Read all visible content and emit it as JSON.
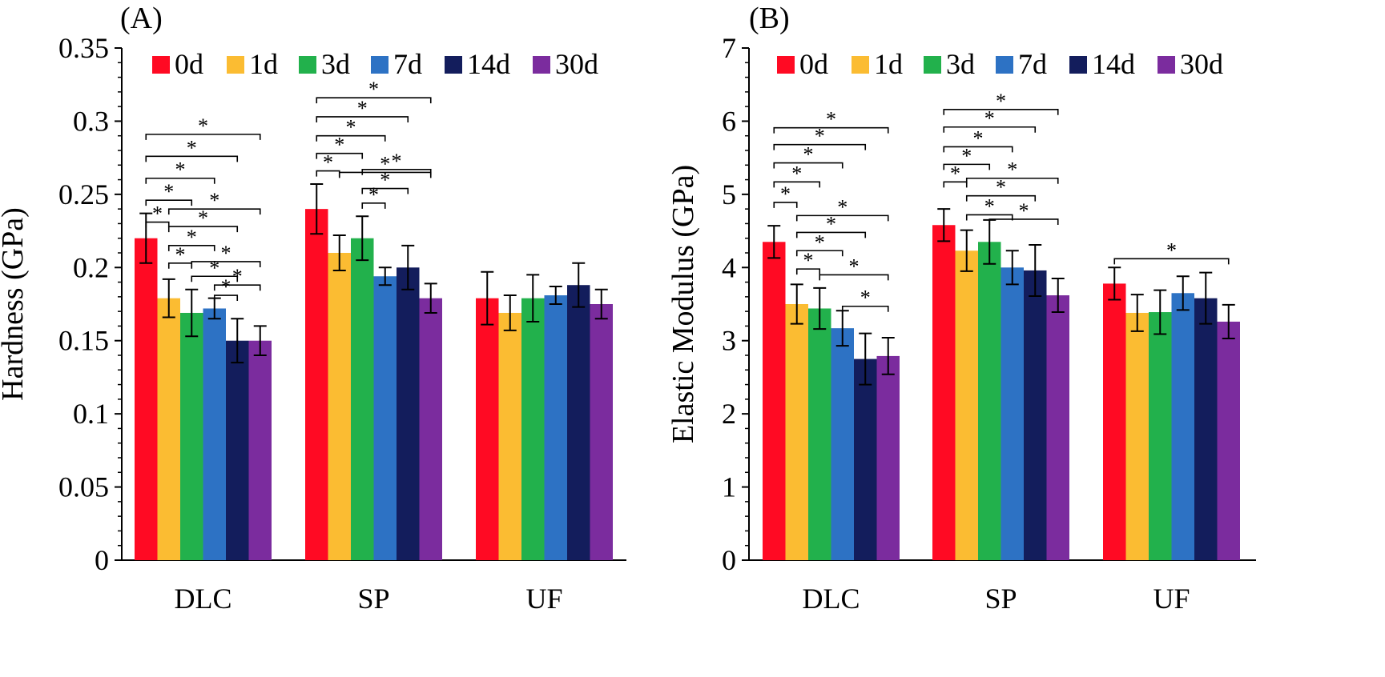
{
  "colors": {
    "0d": "#ff0a23",
    "1d": "#fbbc32",
    "3d": "#22b14c",
    "7d": "#2d72c4",
    "14d": "#131d5c",
    "30d": "#7b2c9e"
  },
  "chart_data": [
    {
      "type": "bar",
      "panel_label": "(A)",
      "ylabel": "Hardness (GPa)",
      "ylim": [
        0,
        0.35
      ],
      "yticks": [
        "0",
        "0.05",
        "0.1",
        "0.15",
        "0.2",
        "0.25",
        "0.3",
        "0.35"
      ],
      "categories": [
        "DLC",
        "SP",
        "UF"
      ],
      "legend": {
        "placement": "top",
        "entries": [
          "0d",
          "1d",
          "3d",
          "7d",
          "14d",
          "30d"
        ]
      },
      "series": [
        {
          "name": "0d",
          "values": [
            0.22,
            0.24,
            0.179
          ],
          "errors": [
            0.017,
            0.017,
            0.018
          ]
        },
        {
          "name": "1d",
          "values": [
            0.179,
            0.21,
            0.169
          ],
          "errors": [
            0.013,
            0.012,
            0.012
          ]
        },
        {
          "name": "3d",
          "values": [
            0.169,
            0.22,
            0.179
          ],
          "errors": [
            0.016,
            0.015,
            0.016
          ]
        },
        {
          "name": "7d",
          "values": [
            0.172,
            0.194,
            0.181
          ],
          "errors": [
            0.007,
            0.006,
            0.006
          ]
        },
        {
          "name": "14d",
          "values": [
            0.15,
            0.2,
            0.188
          ],
          "errors": [
            0.015,
            0.015,
            0.015
          ]
        },
        {
          "name": "30d",
          "values": [
            0.15,
            0.179,
            0.175
          ],
          "errors": [
            0.01,
            0.01,
            0.01
          ]
        }
      ],
      "significance": [
        {
          "cat": 0,
          "from": "0d",
          "to": "1d",
          "level": 0.231,
          "label": "*"
        },
        {
          "cat": 0,
          "from": "0d",
          "to": "3d",
          "level": 0.246,
          "label": "*"
        },
        {
          "cat": 0,
          "from": "0d",
          "to": "7d",
          "level": 0.261,
          "label": "*"
        },
        {
          "cat": 0,
          "from": "0d",
          "to": "14d",
          "level": 0.276,
          "label": "*"
        },
        {
          "cat": 0,
          "from": "0d",
          "to": "30d",
          "level": 0.291,
          "label": "*"
        },
        {
          "cat": 0,
          "from": "1d",
          "to": "3d",
          "level": 0.203,
          "label": "*"
        },
        {
          "cat": 0,
          "from": "1d",
          "to": "7d",
          "level": 0.215,
          "label": "*"
        },
        {
          "cat": 0,
          "from": "1d",
          "to": "14d",
          "level": 0.228,
          "label": "*"
        },
        {
          "cat": 0,
          "from": "1d",
          "to": "30d",
          "level": 0.24,
          "label": "*"
        },
        {
          "cat": 0,
          "from": "3d",
          "to": "14d",
          "level": 0.194,
          "label": "*"
        },
        {
          "cat": 0,
          "from": "3d",
          "to": "30d",
          "level": 0.204,
          "label": "*"
        },
        {
          "cat": 0,
          "from": "7d",
          "to": "30d",
          "level": 0.188,
          "label": "*"
        },
        {
          "cat": 0,
          "from": "7d",
          "to": "14d",
          "level": 0.181,
          "label": "*"
        },
        {
          "cat": 1,
          "from": "0d",
          "to": "1d",
          "level": 0.266,
          "label": "*"
        },
        {
          "cat": 1,
          "from": "0d",
          "to": "3d",
          "level": 0.278,
          "label": "*"
        },
        {
          "cat": 1,
          "from": "0d",
          "to": "7d",
          "level": 0.29,
          "label": "*"
        },
        {
          "cat": 1,
          "from": "0d",
          "to": "14d",
          "level": 0.303,
          "label": "*"
        },
        {
          "cat": 1,
          "from": "0d",
          "to": "30d",
          "level": 0.316,
          "label": "*"
        },
        {
          "cat": 1,
          "from": "1d",
          "to": "30d",
          "level": 0.265,
          "label": "*"
        },
        {
          "cat": 1,
          "from": "3d",
          "to": "7d",
          "level": 0.244,
          "label": "*"
        },
        {
          "cat": 1,
          "from": "3d",
          "to": "14d",
          "level": 0.254,
          "label": "*"
        },
        {
          "cat": 1,
          "from": "3d",
          "to": "30d",
          "level": 0.267,
          "label": "*"
        }
      ]
    },
    {
      "type": "bar",
      "panel_label": "(B)",
      "ylabel": "Elastic Modulus (GPa)",
      "ylim": [
        0,
        7
      ],
      "yticks": [
        "0",
        "1",
        "2",
        "3",
        "4",
        "5",
        "6",
        "7"
      ],
      "categories": [
        "DLC",
        "SP",
        "UF"
      ],
      "legend": {
        "placement": "top",
        "entries": [
          "0d",
          "1d",
          "3d",
          "7d",
          "14d",
          "30d"
        ]
      },
      "series": [
        {
          "name": "0d",
          "values": [
            4.35,
            4.58,
            3.78
          ],
          "errors": [
            0.22,
            0.22,
            0.22
          ]
        },
        {
          "name": "1d",
          "values": [
            3.5,
            4.23,
            3.38
          ],
          "errors": [
            0.27,
            0.28,
            0.25
          ]
        },
        {
          "name": "3d",
          "values": [
            3.44,
            4.35,
            3.39
          ],
          "errors": [
            0.28,
            0.3,
            0.3
          ]
        },
        {
          "name": "7d",
          "values": [
            3.17,
            4.0,
            3.65
          ],
          "errors": [
            0.24,
            0.23,
            0.23
          ]
        },
        {
          "name": "14d",
          "values": [
            2.75,
            3.96,
            3.58
          ],
          "errors": [
            0.35,
            0.35,
            0.35
          ]
        },
        {
          "name": "30d",
          "values": [
            2.79,
            3.62,
            3.26
          ],
          "errors": [
            0.25,
            0.23,
            0.23
          ]
        }
      ],
      "significance": [
        {
          "cat": 0,
          "from": "0d",
          "to": "1d",
          "level": 4.89,
          "label": "*"
        },
        {
          "cat": 0,
          "from": "0d",
          "to": "3d",
          "level": 5.17,
          "label": "*"
        },
        {
          "cat": 0,
          "from": "0d",
          "to": "7d",
          "level": 5.43,
          "label": "*"
        },
        {
          "cat": 0,
          "from": "0d",
          "to": "14d",
          "level": 5.68,
          "label": "*"
        },
        {
          "cat": 0,
          "from": "0d",
          "to": "30d",
          "level": 5.91,
          "label": "*"
        },
        {
          "cat": 0,
          "from": "1d",
          "to": "3d",
          "level": 3.98,
          "label": "*"
        },
        {
          "cat": 0,
          "from": "1d",
          "to": "7d",
          "level": 4.23,
          "label": "*"
        },
        {
          "cat": 0,
          "from": "1d",
          "to": "14d",
          "level": 4.48,
          "label": "*"
        },
        {
          "cat": 0,
          "from": "1d",
          "to": "30d",
          "level": 4.71,
          "label": "*"
        },
        {
          "cat": 0,
          "from": "3d",
          "to": "30d",
          "level": 3.9,
          "label": "*"
        },
        {
          "cat": 0,
          "from": "7d",
          "to": "30d",
          "level": 3.47,
          "label": "*"
        },
        {
          "cat": 1,
          "from": "0d",
          "to": "1d",
          "level": 5.17,
          "label": "*"
        },
        {
          "cat": 1,
          "from": "0d",
          "to": "3d",
          "level": 5.41,
          "label": "*"
        },
        {
          "cat": 1,
          "from": "0d",
          "to": "7d",
          "level": 5.65,
          "label": "*"
        },
        {
          "cat": 1,
          "from": "0d",
          "to": "14d",
          "level": 5.92,
          "label": "*"
        },
        {
          "cat": 1,
          "from": "0d",
          "to": "30d",
          "level": 6.16,
          "label": "*"
        },
        {
          "cat": 1,
          "from": "1d",
          "to": "7d",
          "level": 4.72,
          "label": "*"
        },
        {
          "cat": 1,
          "from": "1d",
          "to": "14d",
          "level": 4.98,
          "label": "*"
        },
        {
          "cat": 1,
          "from": "1d",
          "to": "30d",
          "level": 5.22,
          "label": "*"
        },
        {
          "cat": 1,
          "from": "3d",
          "to": "30d",
          "level": 4.66,
          "label": "*"
        },
        {
          "cat": 2,
          "from": "0d",
          "to": "30d",
          "level": 4.12,
          "label": "*"
        }
      ]
    }
  ]
}
